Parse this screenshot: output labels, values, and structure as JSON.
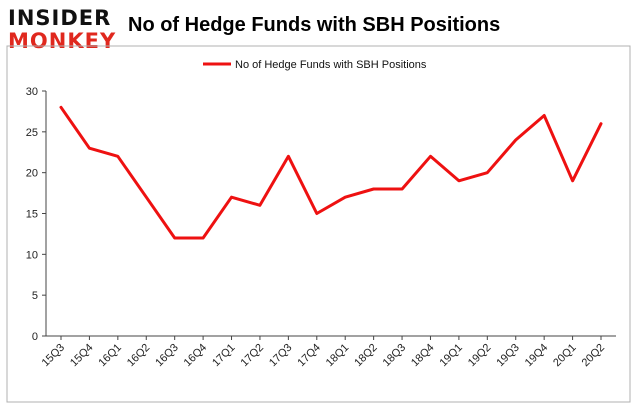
{
  "logo": {
    "line1": "INSIDER",
    "line2": "MONKEY",
    "alt": "Insider Monkey"
  },
  "colors": {
    "series": "#ee1111",
    "frame": "#b0b0b0",
    "logo_dark": "#111111",
    "logo_accent": "#e0281e"
  },
  "chart_data": {
    "type": "line",
    "title": "No of Hedge Funds with SBH Positions",
    "xlabel": "",
    "ylabel": "",
    "x": [
      "15Q3",
      "15Q4",
      "16Q1",
      "16Q2",
      "16Q3",
      "16Q4",
      "17Q1",
      "17Q2",
      "17Q3",
      "17Q4",
      "18Q1",
      "18Q2",
      "18Q3",
      "18Q4",
      "19Q1",
      "19Q2",
      "19Q3",
      "19Q4",
      "20Q1",
      "20Q2"
    ],
    "series": [
      {
        "name": "No of Hedge Funds with SBH Positions",
        "values": [
          28,
          23,
          22,
          17,
          12,
          12,
          17,
          16,
          22,
          15,
          17,
          18,
          18,
          22,
          19,
          20,
          24,
          27,
          19,
          26
        ]
      }
    ],
    "ylim": [
      0,
      30
    ],
    "yticks": [
      0,
      5,
      10,
      15,
      20,
      25,
      30
    ],
    "grid": false,
    "legend": "top-center"
  }
}
